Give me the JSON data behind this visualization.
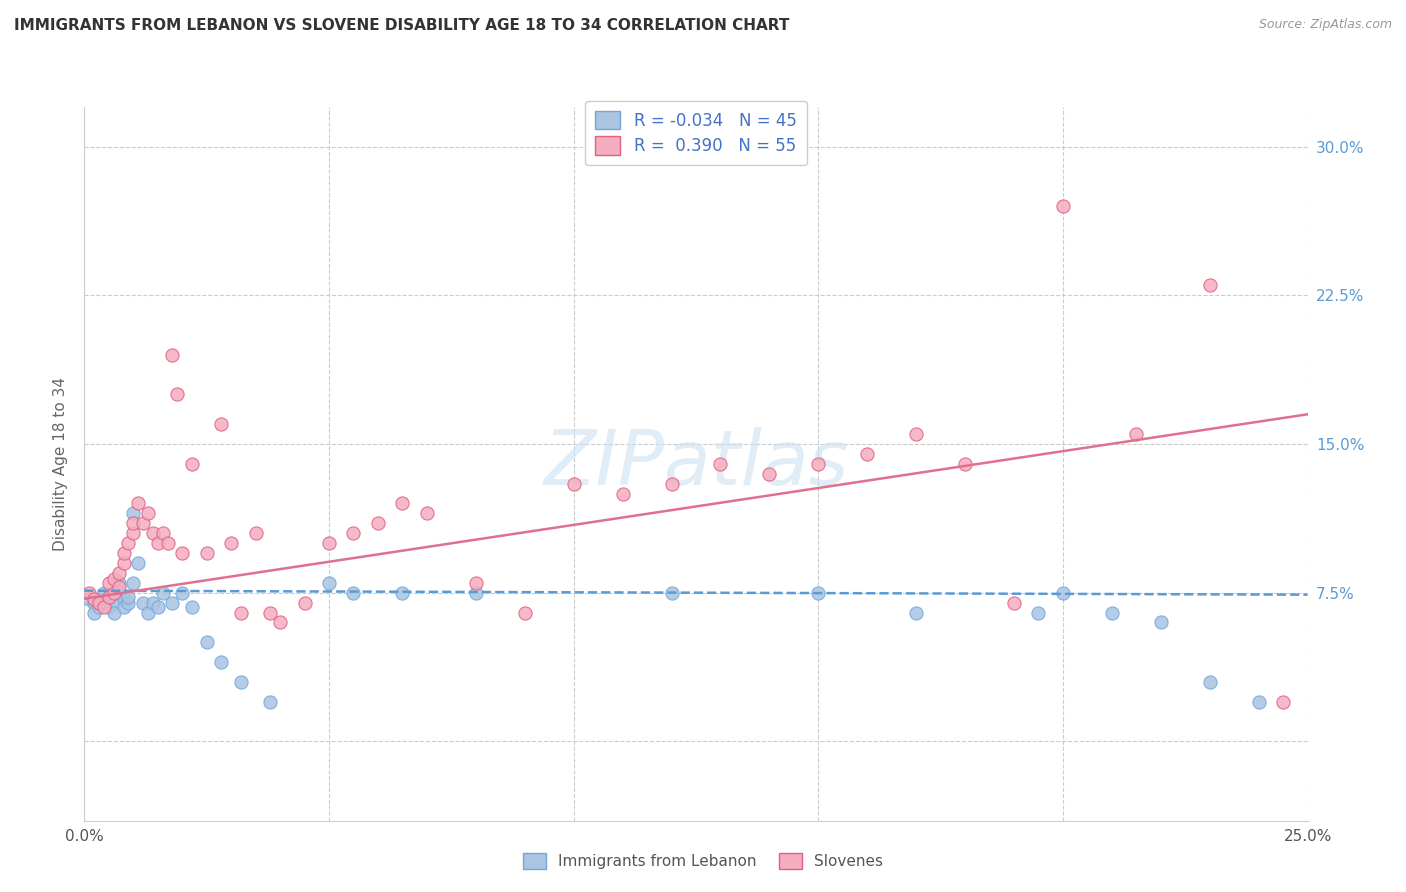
{
  "title": "IMMIGRANTS FROM LEBANON VS SLOVENE DISABILITY AGE 18 TO 34 CORRELATION CHART",
  "source": "Source: ZipAtlas.com",
  "ylabel": "Disability Age 18 to 34",
  "xlim": [
    0.0,
    0.25
  ],
  "ylim": [
    -0.04,
    0.32
  ],
  "xtick_vals": [
    0.0,
    0.05,
    0.1,
    0.15,
    0.2,
    0.25
  ],
  "xtick_labels": [
    "0.0%",
    "",
    "",
    "",
    "",
    "25.0%"
  ],
  "ytick_vals": [
    0.0,
    0.075,
    0.15,
    0.225,
    0.3
  ],
  "ytick_labels": [
    "",
    "7.5%",
    "15.0%",
    "22.5%",
    "30.0%"
  ],
  "legend_labels": [
    "Immigrants from Lebanon",
    "Slovenes"
  ],
  "legend_R": [
    "-0.034",
    "0.390"
  ],
  "legend_N": [
    "45",
    "55"
  ],
  "color_blue": "#aac4e2",
  "color_pink": "#f5adc0",
  "edge_blue": "#6fa8dc",
  "edge_pink": "#e06080",
  "line_blue": "#5b9bd5",
  "line_pink": "#e07090",
  "watermark": "ZIPatlas",
  "blue_R": -0.034,
  "pink_R": 0.39,
  "blue_x": [
    0.001,
    0.002,
    0.002,
    0.003,
    0.003,
    0.004,
    0.004,
    0.005,
    0.005,
    0.006,
    0.006,
    0.007,
    0.007,
    0.008,
    0.008,
    0.009,
    0.009,
    0.01,
    0.01,
    0.011,
    0.012,
    0.013,
    0.014,
    0.015,
    0.016,
    0.018,
    0.02,
    0.022,
    0.025,
    0.028,
    0.032,
    0.038,
    0.05,
    0.055,
    0.065,
    0.08,
    0.12,
    0.15,
    0.17,
    0.195,
    0.2,
    0.21,
    0.22,
    0.23,
    0.24
  ],
  "blue_y": [
    0.072,
    0.07,
    0.065,
    0.068,
    0.072,
    0.07,
    0.075,
    0.068,
    0.073,
    0.07,
    0.065,
    0.075,
    0.08,
    0.072,
    0.068,
    0.07,
    0.073,
    0.115,
    0.08,
    0.09,
    0.07,
    0.065,
    0.07,
    0.068,
    0.075,
    0.07,
    0.075,
    0.068,
    0.05,
    0.04,
    0.03,
    0.02,
    0.08,
    0.075,
    0.075,
    0.075,
    0.075,
    0.075,
    0.065,
    0.065,
    0.075,
    0.065,
    0.06,
    0.03,
    0.02
  ],
  "pink_x": [
    0.001,
    0.002,
    0.003,
    0.004,
    0.005,
    0.005,
    0.006,
    0.006,
    0.007,
    0.007,
    0.008,
    0.008,
    0.009,
    0.01,
    0.01,
    0.011,
    0.012,
    0.013,
    0.014,
    0.015,
    0.016,
    0.017,
    0.018,
    0.019,
    0.02,
    0.022,
    0.025,
    0.028,
    0.03,
    0.032,
    0.035,
    0.038,
    0.04,
    0.045,
    0.05,
    0.055,
    0.06,
    0.065,
    0.07,
    0.08,
    0.09,
    0.1,
    0.11,
    0.12,
    0.13,
    0.14,
    0.15,
    0.16,
    0.17,
    0.18,
    0.19,
    0.2,
    0.215,
    0.23,
    0.245
  ],
  "pink_y": [
    0.075,
    0.072,
    0.07,
    0.068,
    0.073,
    0.08,
    0.075,
    0.082,
    0.078,
    0.085,
    0.09,
    0.095,
    0.1,
    0.105,
    0.11,
    0.12,
    0.11,
    0.115,
    0.105,
    0.1,
    0.105,
    0.1,
    0.195,
    0.175,
    0.095,
    0.14,
    0.095,
    0.16,
    0.1,
    0.065,
    0.105,
    0.065,
    0.06,
    0.07,
    0.1,
    0.105,
    0.11,
    0.12,
    0.115,
    0.08,
    0.065,
    0.13,
    0.125,
    0.13,
    0.14,
    0.135,
    0.14,
    0.145,
    0.155,
    0.14,
    0.07,
    0.27,
    0.155,
    0.23,
    0.02
  ],
  "blue_line_x": [
    0.0,
    0.25
  ],
  "blue_line_y": [
    0.076,
    0.074
  ],
  "pink_line_x": [
    0.0,
    0.25
  ],
  "pink_line_y": [
    0.072,
    0.165
  ]
}
